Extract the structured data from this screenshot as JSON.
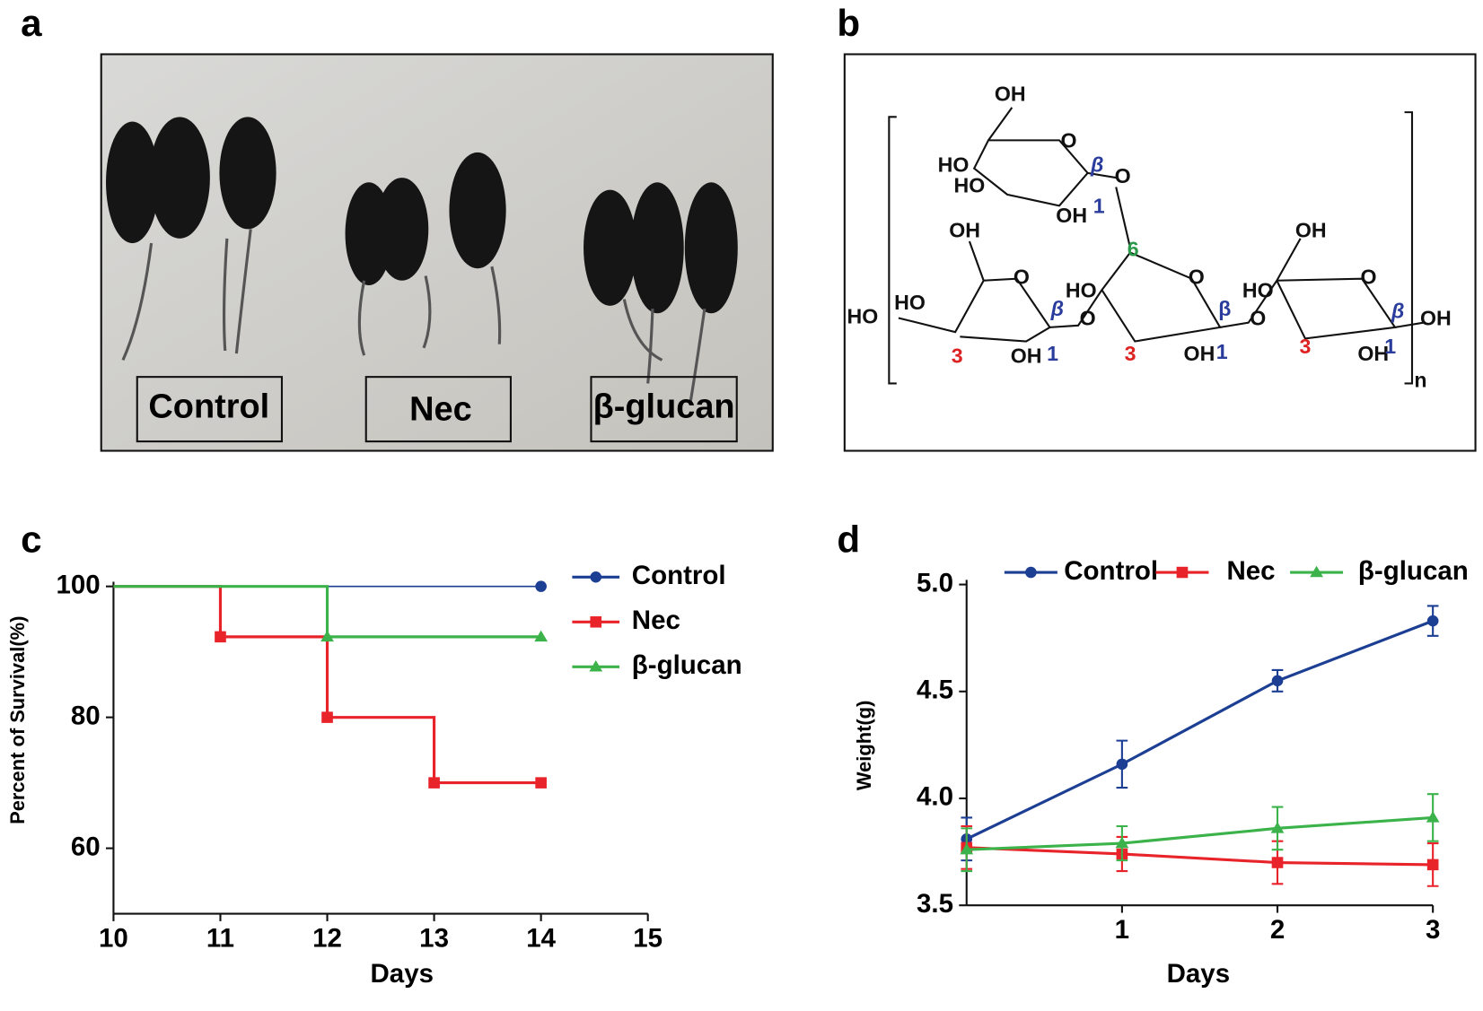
{
  "panels": {
    "a": {
      "letter": "a",
      "groups": [
        "Control",
        "Nec",
        "β-glucan"
      ]
    },
    "b": {
      "letter": "b",
      "structure_labels": [
        "OH",
        "O",
        "HO",
        "β",
        "O",
        "HO",
        "OH",
        "1",
        "6",
        "OH",
        "OH",
        "O",
        "O",
        "O",
        "HO",
        "HO",
        "HO",
        "HO",
        "β",
        "β",
        "β",
        "O",
        "O",
        "OH",
        "3",
        "3",
        "3",
        "OH",
        "OH",
        "OH",
        "1",
        "1",
        "1",
        "n"
      ]
    },
    "c": {
      "letter": "c",
      "chart_data": {
        "type": "step",
        "x_label": "Days",
        "y_label": "Percent of Survival(%)",
        "x": [
          10,
          11,
          12,
          13,
          14
        ],
        "xlim": [
          10,
          15
        ],
        "xticks": [
          10,
          11,
          12,
          13,
          14,
          15
        ],
        "ylim": [
          50,
          100
        ],
        "yticks": [
          60,
          80,
          100
        ],
        "series": [
          {
            "name": "Control",
            "color": "#1c3f94",
            "marker": "circle",
            "values": [
              100,
              100,
              100,
              100,
              100
            ]
          },
          {
            "name": "Nec",
            "color": "#e8232a",
            "marker": "square",
            "values": [
              100,
              92.3,
              80,
              70,
              70
            ]
          },
          {
            "name": "β-glucan",
            "color": "#3bb34a",
            "marker": "triangle",
            "values": [
              100,
              100,
              92.3,
              92.3,
              92.3
            ]
          }
        ]
      }
    },
    "d": {
      "letter": "d",
      "chart_data": {
        "type": "line",
        "x_label": "Days",
        "y_label": "Weight(g)",
        "x": [
          0,
          1,
          2,
          3
        ],
        "xlim": [
          0,
          3
        ],
        "xticks": [
          1,
          2,
          3
        ],
        "ylim": [
          3.5,
          5.0
        ],
        "yticks": [
          3.5,
          {
            "value": 4.0,
            "label": "4.0"
          },
          4.5,
          {
            "value": 5.0,
            "label": "5.0"
          }
        ],
        "series": [
          {
            "name": "Control",
            "color": "#1c3f94",
            "marker": "circle",
            "values": [
              3.81,
              4.16,
              4.55,
              4.83
            ],
            "errors": [
              0.1,
              0.11,
              0.05,
              0.07
            ]
          },
          {
            "name": "Nec",
            "color": "#e8232a",
            "marker": "square",
            "values": [
              3.77,
              3.74,
              3.7,
              3.69
            ],
            "errors": [
              0.1,
              0.08,
              0.1,
              0.1
            ]
          },
          {
            "name": "β-glucan",
            "color": "#3bb34a",
            "marker": "triangle",
            "values": [
              3.76,
              3.79,
              3.86,
              3.91
            ],
            "errors": [
              0.1,
              0.08,
              0.1,
              0.11
            ]
          }
        ]
      }
    }
  }
}
